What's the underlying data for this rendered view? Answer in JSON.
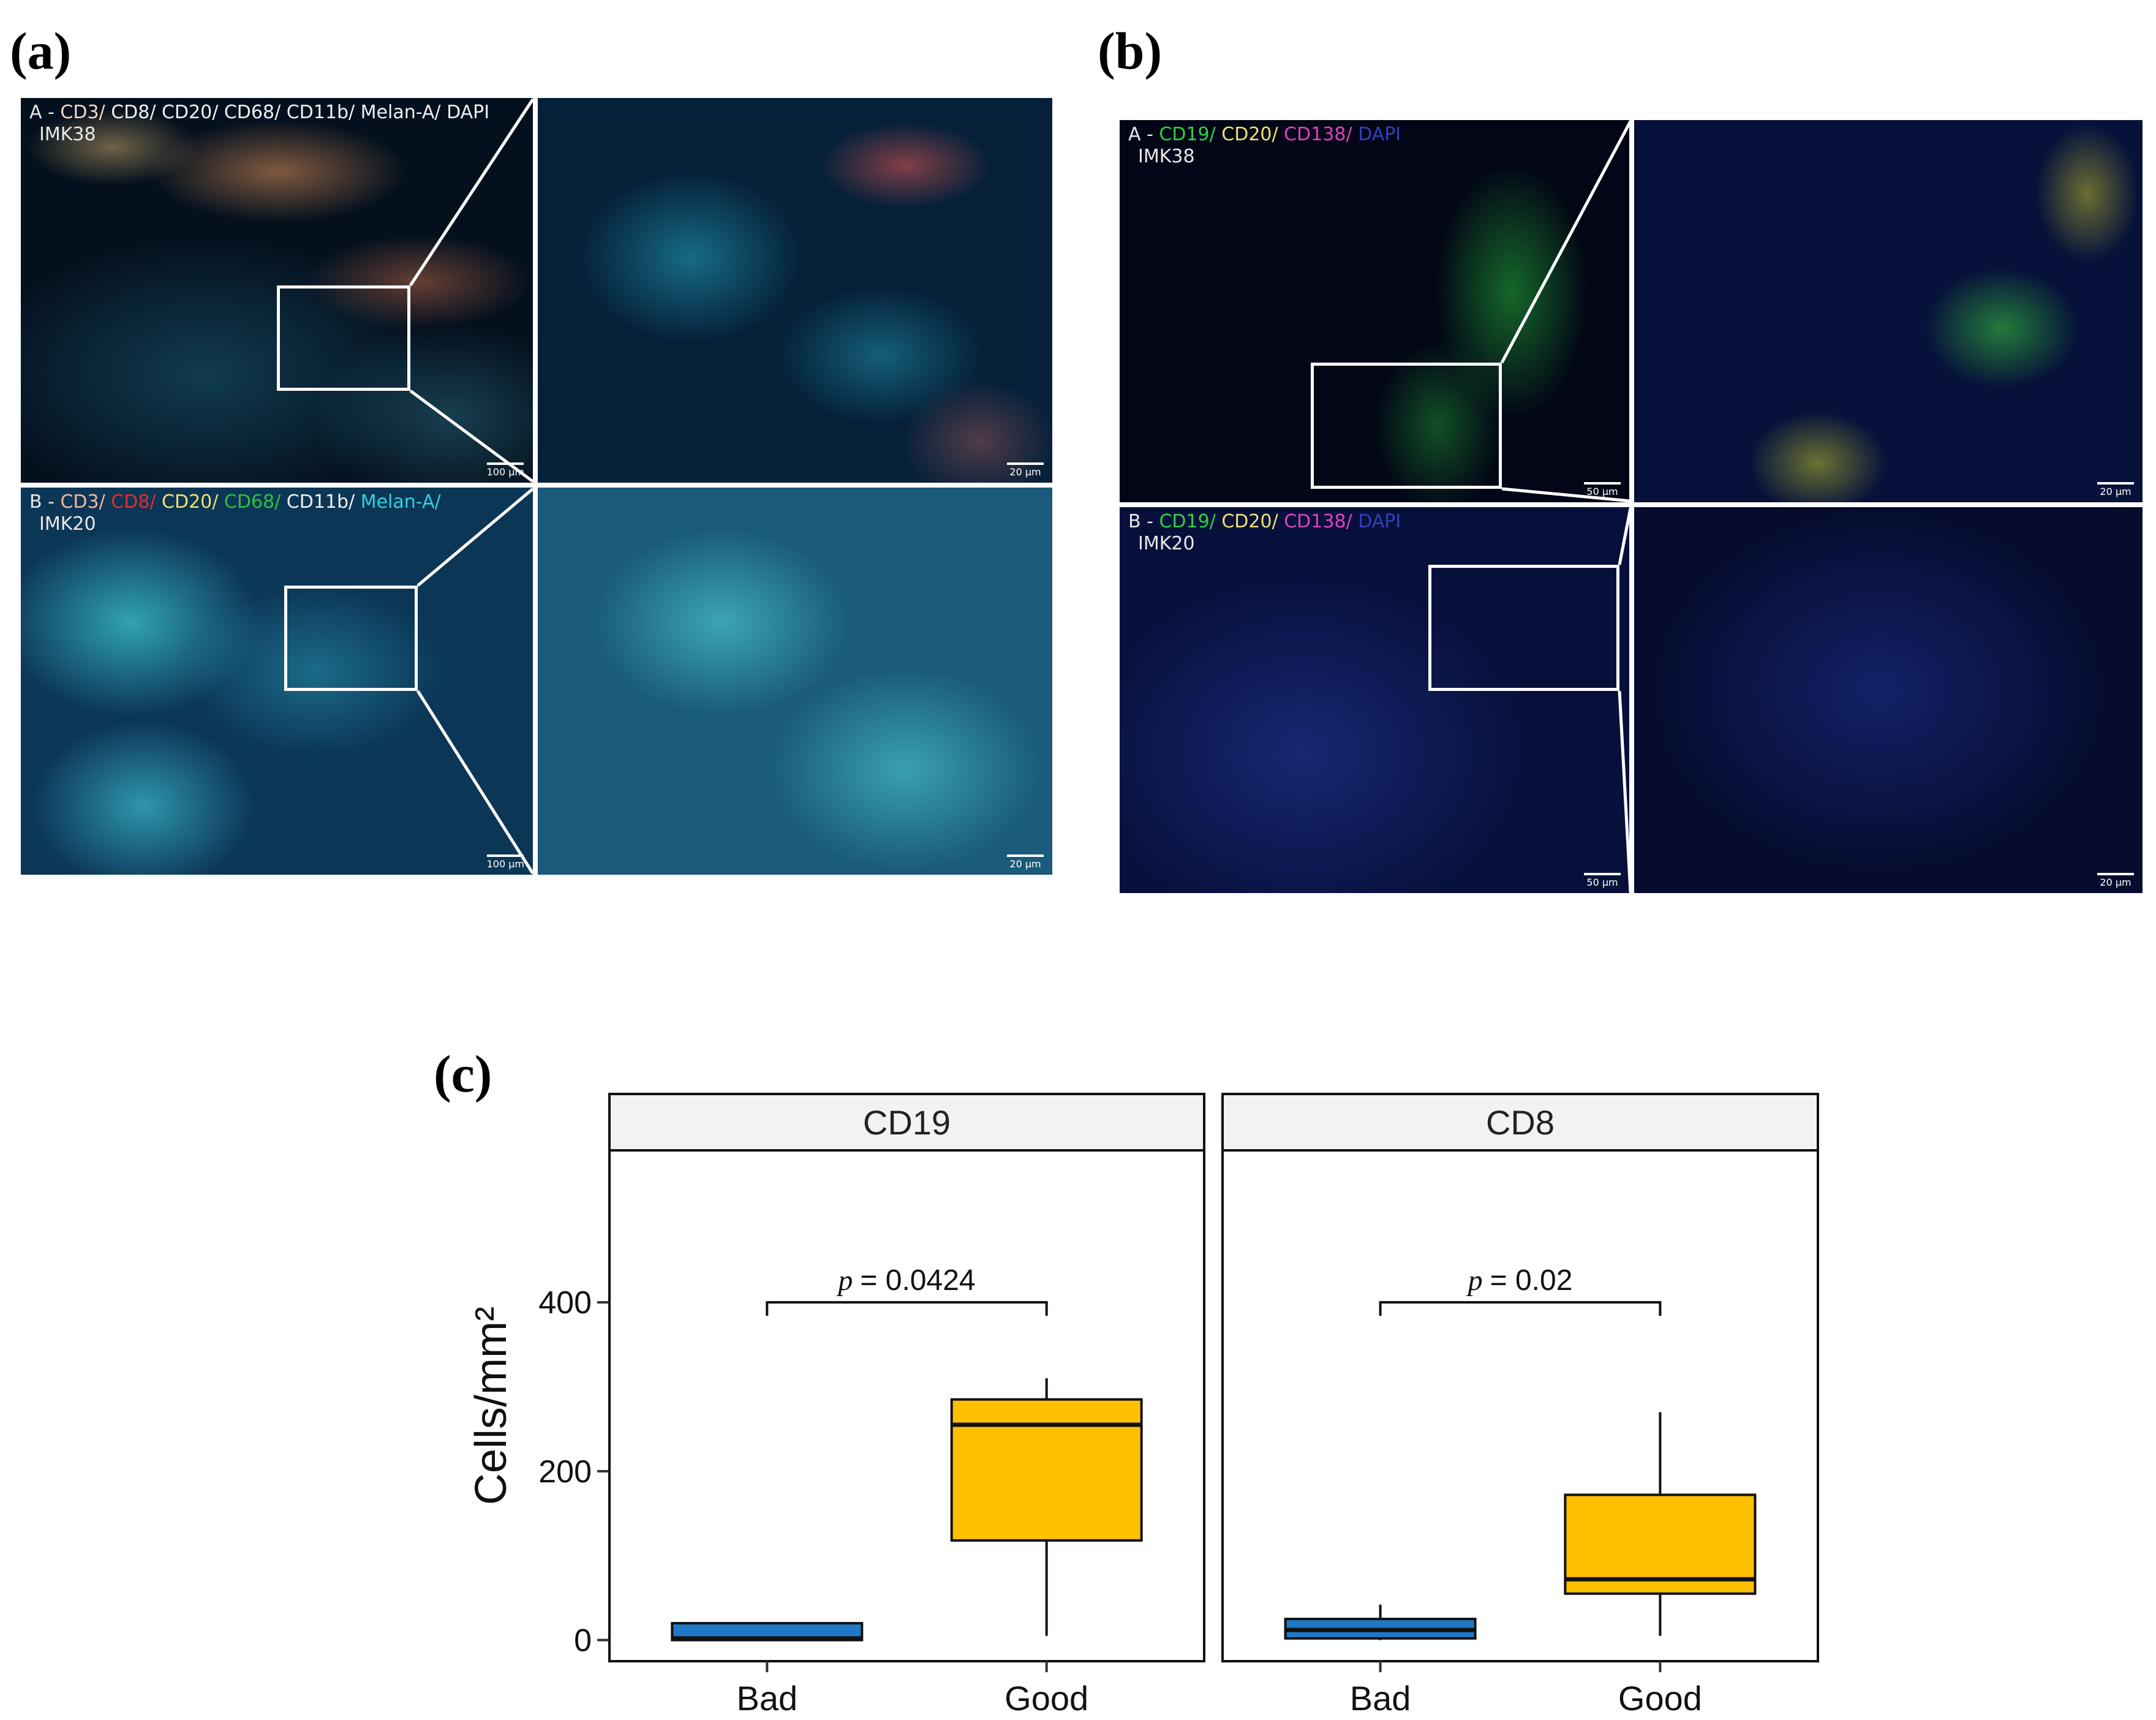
{
  "panels": {
    "a": {
      "letter": "(a)",
      "top": {
        "caption_prefix": "A - ",
        "markers": [
          {
            "text": "CD3/ ",
            "color": "#f3d8c8"
          },
          {
            "text": "CD8/ ",
            "color": "#f0f0f0"
          },
          {
            "text": "CD20/ ",
            "color": "#f0f0f0"
          },
          {
            "text": "CD68/ ",
            "color": "#f0f0f0"
          },
          {
            "text": "CD11b/ ",
            "color": "#f0f0f0"
          },
          {
            "text": "Melan-A/ ",
            "color": "#f0f0f0"
          },
          {
            "text": "DAPI",
            "color": "#f0f0f0"
          }
        ],
        "sample": "IMK38",
        "scale_main": "100 µm",
        "scale_zoom": "20 µm"
      },
      "bottom": {
        "caption_prefix": "B - ",
        "markers": [
          {
            "text": "CD3/ ",
            "color": "#f3b7a0"
          },
          {
            "text": "CD8/ ",
            "color": "#e03030"
          },
          {
            "text": "CD20/ ",
            "color": "#f0e070"
          },
          {
            "text": "CD68/ ",
            "color": "#30c040"
          },
          {
            "text": "CD11b/ ",
            "color": "#f0f0f0"
          },
          {
            "text": "Melan-A/ ",
            "color": "#30d0e0"
          }
        ],
        "sample": "IMK20",
        "scale_main": "100 µm",
        "scale_zoom": "20 µm"
      }
    },
    "b": {
      "letter": "(b)",
      "top": {
        "caption_prefix": "A - ",
        "markers": [
          {
            "text": "CD19/ ",
            "color": "#30d040"
          },
          {
            "text": "CD20/ ",
            "color": "#f0e070"
          },
          {
            "text": "CD138/ ",
            "color": "#e040c0"
          },
          {
            "text": "DAPI",
            "color": "#3040c0"
          }
        ],
        "sample": "IMK38",
        "scale_main": "50 µm",
        "scale_zoom": "20 µm"
      },
      "bottom": {
        "caption_prefix": "B - ",
        "markers": [
          {
            "text": "CD19/ ",
            "color": "#30d040"
          },
          {
            "text": "CD20/ ",
            "color": "#f0e070"
          },
          {
            "text": "CD138/ ",
            "color": "#e040c0"
          },
          {
            "text": "DAPI",
            "color": "#3040c0"
          }
        ],
        "sample": "IMK20",
        "scale_main": "50 µm",
        "scale_zoom": "20 µm"
      }
    },
    "c": {
      "letter": "(c)"
    }
  },
  "colors": {
    "bad": "#1f78c8",
    "good": "#ffc000",
    "strip": "#f2f2f2"
  },
  "chart_data": {
    "type": "box",
    "ylabel": "Cells/mm²",
    "ylim": [
      -25,
      580
    ],
    "yticks": [
      0,
      200,
      400
    ],
    "categories": [
      "Bad",
      "Good"
    ],
    "facets": [
      {
        "name": "CD19",
        "p_label": "p",
        "p_value": "= 0.0424",
        "bracket_y": 400,
        "boxes": [
          {
            "group": "Bad",
            "min": 0,
            "q1": 0,
            "median": 2,
            "q3": 20,
            "max": 20
          },
          {
            "group": "Good",
            "min": 5,
            "q1": 118,
            "median": 255,
            "q3": 285,
            "max": 310
          }
        ]
      },
      {
        "name": "CD8",
        "p_label": "p",
        "p_value": "= 0.02",
        "bracket_y": 400,
        "boxes": [
          {
            "group": "Bad",
            "min": 0,
            "q1": 2,
            "median": 12,
            "q3": 25,
            "max": 42
          },
          {
            "group": "Good",
            "min": 5,
            "q1": 55,
            "median": 72,
            "q3": 172,
            "max": 270
          }
        ]
      }
    ]
  }
}
